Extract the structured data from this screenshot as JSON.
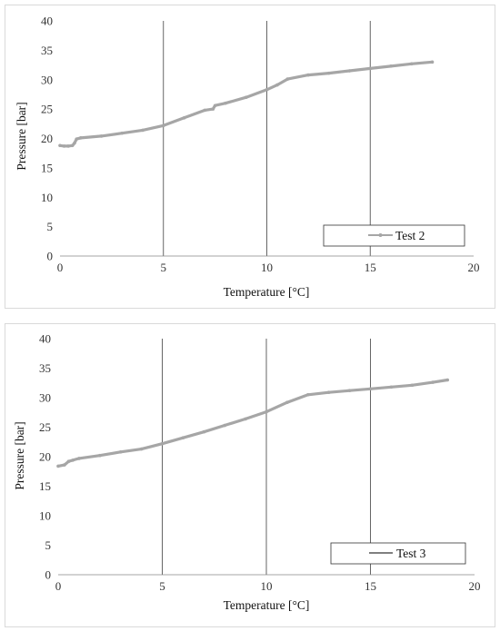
{
  "chart_data": [
    {
      "type": "line",
      "xlabel": "Temperature [°C]",
      "ylabel": "Pressure [bar]",
      "xlim": [
        0,
        20
      ],
      "ylim": [
        0,
        40
      ],
      "xticks": [
        "0",
        "5",
        "10",
        "15",
        "20"
      ],
      "yticks": [
        "0",
        "5",
        "10",
        "15",
        "20",
        "25",
        "30",
        "35",
        "40"
      ],
      "vertical_gridlines": [
        5,
        10,
        15
      ],
      "legend_position": "bottom-right",
      "series": [
        {
          "name": "Test 2",
          "color": "#a6a6a6",
          "x": [
            0,
            0.2,
            0.4,
            0.6,
            0.7,
            0.8,
            1,
            2,
            3,
            4,
            5,
            6,
            7,
            7.4,
            7.5,
            8,
            9,
            10,
            10.5,
            11,
            12,
            13,
            14,
            15,
            16,
            17,
            18
          ],
          "y": [
            18.8,
            18.7,
            18.7,
            18.8,
            19.2,
            19.9,
            20.1,
            20.4,
            20.9,
            21.4,
            22.2,
            23.5,
            24.8,
            25.0,
            25.6,
            26.0,
            27.0,
            28.3,
            29.1,
            30.1,
            30.8,
            31.1,
            31.5,
            31.9,
            32.3,
            32.7,
            33.0
          ]
        },
        {
          "name": "Test 3",
          "color": "#a6a6a6",
          "x": [
            0,
            0.3,
            0.5,
            0.7,
            1,
            2,
            3,
            4,
            5,
            6,
            7,
            8,
            9,
            10,
            11,
            12,
            13,
            14,
            15,
            16,
            17,
            18,
            18.7
          ],
          "y": [
            18.4,
            18.6,
            19.2,
            19.4,
            19.7,
            20.2,
            20.8,
            21.3,
            22.2,
            23.2,
            24.2,
            25.3,
            26.4,
            27.6,
            29.2,
            30.5,
            30.9,
            31.2,
            31.5,
            31.8,
            32.1,
            32.6,
            33.0
          ]
        }
      ]
    }
  ]
}
